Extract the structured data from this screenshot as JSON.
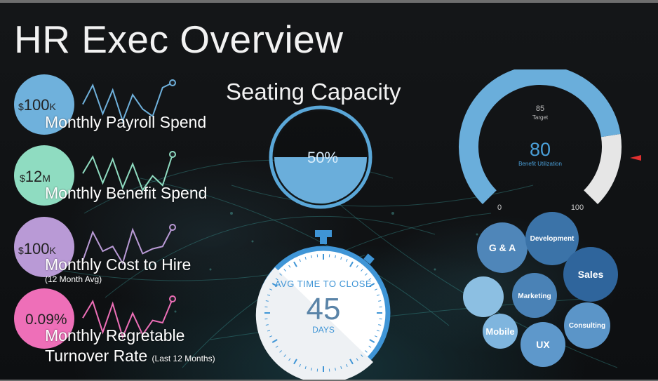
{
  "header": {
    "title": "HR Exec Overview"
  },
  "kpis": [
    {
      "currency": "$",
      "value": "100",
      "unit": "K",
      "label": "Monthly Payroll Spend",
      "color": "#6fb1dc",
      "trend": [
        0.55,
        0.95,
        0.35,
        0.85,
        0.2,
        0.75,
        0.45,
        0.3,
        0.9,
        1.0
      ]
    },
    {
      "currency": "$",
      "value": "12",
      "unit": "M",
      "label": "Monthly Benefit Spend",
      "color": "#8fdcc1",
      "trend": [
        0.6,
        0.95,
        0.4,
        0.9,
        0.3,
        0.8,
        0.25,
        0.55,
        0.35,
        1.0
      ]
    },
    {
      "currency": "$",
      "value": "100",
      "unit": "K",
      "label": "Monthly Cost to Hire",
      "sublabel": "(12 Month Avg)",
      "color": "#b99ad6",
      "trend": [
        0.3,
        0.9,
        0.5,
        0.6,
        0.25,
        0.95,
        0.45,
        0.55,
        0.6,
        1.0
      ]
    },
    {
      "value": "0.09%",
      "label": "Monthly Regretable",
      "label_line2": "Turnover Rate",
      "label_suffix": "(Last 12 Months)",
      "color": "#ee6fb8",
      "trend": [
        0.6,
        0.95,
        0.3,
        0.9,
        0.2,
        0.7,
        0.25,
        0.55,
        0.5,
        1.0
      ]
    }
  ],
  "seating": {
    "title": "Seating Capacity",
    "value_label": "50%",
    "fill_fraction": 0.5
  },
  "stopwatch": {
    "line1": "AVG TIME TO CLOSE",
    "value": "45",
    "line3": "DAYS"
  },
  "gauge": {
    "target_value": "85",
    "target_label": "Target",
    "value": "80",
    "value_label": "Benefit Utilization",
    "min_label": "0",
    "max_label": "100",
    "fraction": 0.8
  },
  "departments": [
    {
      "name": "G & A"
    },
    {
      "name": "Development"
    },
    {
      "name": "Sales"
    },
    {
      "name": ""
    },
    {
      "name": "Marketing"
    },
    {
      "name": "Consulting"
    },
    {
      "name": "Mobile"
    },
    {
      "name": "UX"
    }
  ],
  "colors": {
    "accent_blue": "#4a9fd8",
    "gauge_fill": "#6aaedb",
    "gauge_rest": "#e6e6e6",
    "marker": "#e03030"
  }
}
